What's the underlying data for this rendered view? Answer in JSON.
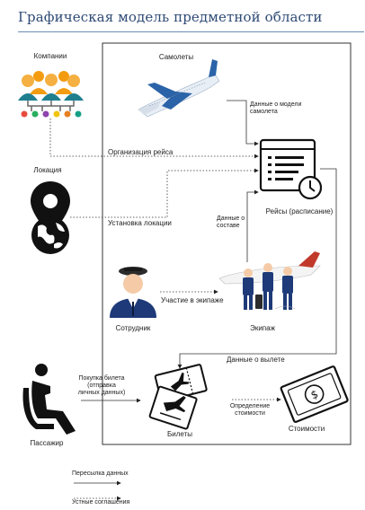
{
  "title": "Графическая модель предметной области",
  "nodes": {
    "companies": "Компании",
    "location": "Локация",
    "planes": "Самолеты",
    "flights": "Рейсы (расписание)",
    "employee": "Сотрудник",
    "crew": "Экипаж",
    "passenger": "Пассажир",
    "tickets": "Билеты",
    "costs": "Стоимости"
  },
  "edges": {
    "flight_org": "Организация рейса",
    "location_set": "Установка локации",
    "plane_model": [
      "Данные о модели",
      "самолета"
    ],
    "crew_data": [
      "Данные о",
      "составе"
    ],
    "crew_participation": "Участие в экипаже",
    "departure_data": "Данные о вылете",
    "ticket_purchase": [
      "Покупка билета",
      "(отправка",
      "личных данных)"
    ],
    "cost_def": [
      "Определение",
      "стоимости"
    ]
  },
  "legend": {
    "data_transfer": "Пересылка данных",
    "verbal": "Устные соглашения"
  },
  "colors": {
    "title": "#2e4a74",
    "people_orange": "#f39c12",
    "people_teal": "#1f7f8f",
    "nodes_multi": [
      "#e74c3c",
      "#27ae60",
      "#8e44ad",
      "#f1c40f",
      "#e67e22",
      "#16a085"
    ],
    "plane_body": "#e8eef5",
    "plane_blue": "#2b63a8",
    "crew_uniform": "#1e3a78",
    "tail_red": "#c0392b"
  }
}
